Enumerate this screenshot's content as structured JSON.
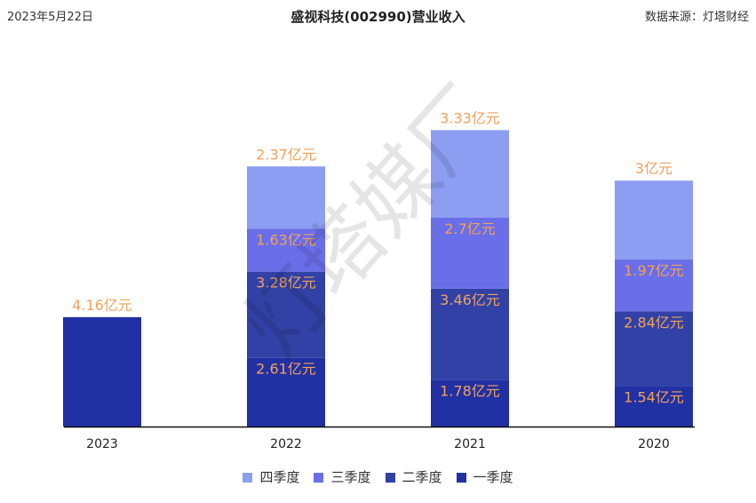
{
  "header": {
    "date": "2023年5月22日",
    "title": "盛视科技(002990)营业收入",
    "source": "数据来源：灯塔财经"
  },
  "watermark": "灯塔媒厂",
  "chart_data": {
    "type": "bar",
    "stacked": true,
    "categories": [
      "2023",
      "2022",
      "2021",
      "2020"
    ],
    "unit": "亿元",
    "series": [
      {
        "name": "一季度",
        "color": "#2130a3",
        "values": [
          4.16,
          2.61,
          1.78,
          1.54
        ],
        "labels": [
          "4.16亿元",
          "2.61亿元",
          "1.78亿元",
          "1.54亿元"
        ]
      },
      {
        "name": "二季度",
        "color": "#3141a5",
        "values": [
          null,
          3.28,
          3.46,
          2.84
        ],
        "labels": [
          "",
          "3.28亿元",
          "3.46亿元",
          "2.84亿元"
        ]
      },
      {
        "name": "三季度",
        "color": "#6a6ee8",
        "values": [
          null,
          1.63,
          2.7,
          1.97
        ],
        "labels": [
          "",
          "1.63亿元",
          "2.7亿元",
          "1.97亿元"
        ]
      },
      {
        "name": "四季度",
        "color": "#8d9ef2",
        "values": [
          null,
          2.37,
          3.33,
          3.0
        ],
        "labels": [
          "",
          "2.37亿元",
          "3.33亿元",
          "3亿元"
        ]
      }
    ],
    "legend_order": [
      "四季度",
      "三季度",
      "二季度",
      "一季度"
    ],
    "grid": false,
    "legend_position": "bottom",
    "label_color": "#f0a25a"
  }
}
